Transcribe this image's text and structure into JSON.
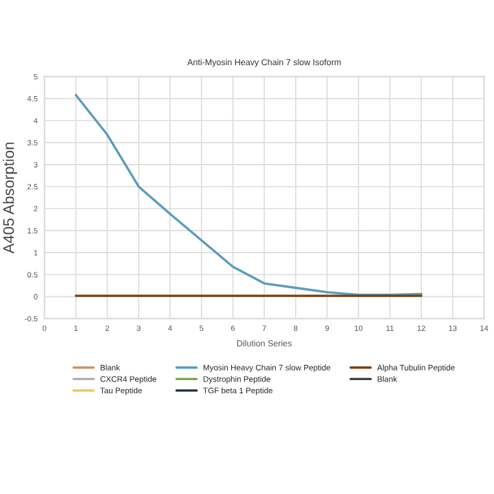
{
  "chart_data": {
    "type": "line",
    "title": "Anti-Myosin Heavy Chain 7 slow Isoform",
    "xlabel": "Dilution Series",
    "ylabel": "A405 Absorption",
    "x": [
      1,
      2,
      3,
      4,
      5,
      6,
      7,
      8,
      9,
      10,
      11,
      12
    ],
    "series": [
      {
        "name": "Blank",
        "color": "#c8956a",
        "values": [
          null,
          null,
          null,
          null,
          null,
          null,
          null,
          null,
          null,
          null,
          null,
          null
        ]
      },
      {
        "name": "CXCR4 Peptide",
        "color": "#b0b0b0",
        "values": [
          null,
          null,
          null,
          null,
          null,
          null,
          null,
          null,
          null,
          null,
          null,
          null
        ]
      },
      {
        "name": "Tau Peptide",
        "color": "#e8c85a",
        "values": [
          null,
          null,
          null,
          null,
          null,
          null,
          null,
          null,
          null,
          null,
          null,
          null
        ]
      },
      {
        "name": "Myosin Heavy Chain 7 slow Peptide",
        "color": "#5b9bbd",
        "values": [
          4.58,
          3.68,
          2.5,
          1.88,
          1.28,
          0.68,
          0.3,
          0.2,
          0.1,
          0.04,
          0.04,
          0.06
        ]
      },
      {
        "name": "Dystrophin Peptide",
        "color": "#7aa84a",
        "values": [
          null,
          null,
          null,
          null,
          null,
          null,
          null,
          null,
          null,
          null,
          null,
          null
        ]
      },
      {
        "name": "TGF beta 1 Peptide",
        "color": "#1f2d3d",
        "values": [
          null,
          null,
          null,
          null,
          null,
          null,
          null,
          null,
          null,
          null,
          null,
          null
        ]
      },
      {
        "name": "Alpha Tubulin Peptide",
        "color": "#7a3f10",
        "values": [
          0.02,
          0.02,
          0.02,
          0.02,
          0.02,
          0.02,
          0.02,
          0.02,
          0.02,
          0.02,
          0.02,
          0.02
        ]
      },
      {
        "name": "Blank",
        "color": "#404040",
        "values": [
          null,
          null,
          null,
          null,
          null,
          null,
          null,
          null,
          null,
          null,
          null,
          null
        ]
      }
    ],
    "xlim": [
      0,
      14
    ],
    "xticks": [
      0,
      1,
      2,
      3,
      4,
      5,
      6,
      7,
      8,
      9,
      10,
      11,
      12,
      13,
      14
    ],
    "ylim": [
      -0.5,
      5
    ],
    "yticks": [
      -0.5,
      0,
      0.5,
      1,
      1.5,
      2,
      2.5,
      3,
      3.5,
      4,
      4.5,
      5
    ],
    "grid": true,
    "legend": "bottom",
    "marker": "none",
    "line_style": "solid"
  }
}
